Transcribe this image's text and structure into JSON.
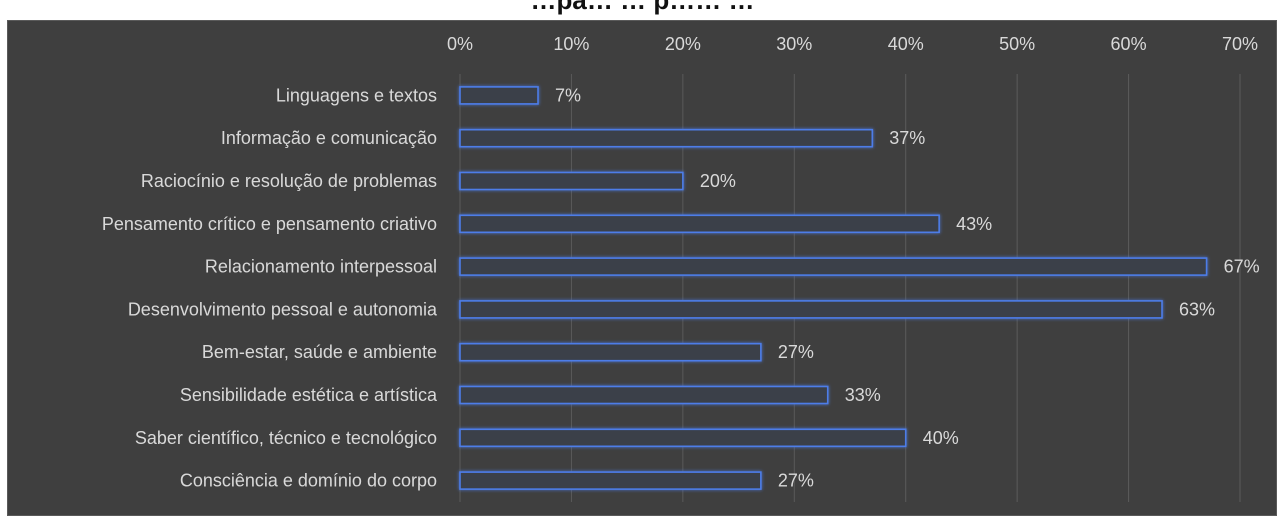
{
  "chart_data": {
    "type": "bar",
    "orientation": "horizontal",
    "title": "…pã… … p…… …",
    "categories": [
      "Linguagens e textos",
      "Informação e comunicação",
      "Raciocínio e resolução de problemas",
      "Pensamento crítico e pensamento criativo",
      "Relacionamento interpessoal",
      "Desenvolvimento pessoal e autonomia",
      "Bem-estar, saúde e ambiente",
      "Sensibilidade estética e artística",
      "Saber científico, técnico e tecnológico",
      "Consciência e domínio do corpo"
    ],
    "values": [
      7,
      37,
      20,
      43,
      67,
      63,
      27,
      33,
      40,
      27
    ],
    "data_labels": [
      "7%",
      "37%",
      "20%",
      "43%",
      "67%",
      "63%",
      "27%",
      "33%",
      "40%",
      "27%"
    ],
    "xlim": [
      0,
      70
    ],
    "x_ticks": [
      "0%",
      "10%",
      "20%",
      "30%",
      "40%",
      "50%",
      "60%",
      "70%"
    ],
    "x_axis_position": "top",
    "grid": true,
    "colors": {
      "background": "#3f3f3f",
      "bar_outline": "#4d7de8",
      "text": "#d9d9d9"
    }
  }
}
